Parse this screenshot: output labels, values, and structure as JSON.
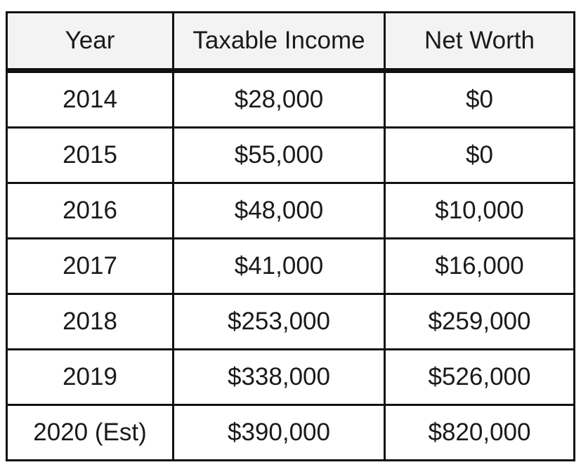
{
  "chart_data": {
    "type": "table",
    "columns": [
      "Year",
      "Taxable Income",
      "Net Worth"
    ],
    "rows": [
      [
        "2014",
        "$28,000",
        "$0"
      ],
      [
        "2015",
        "$55,000",
        "$0"
      ],
      [
        "2016",
        "$48,000",
        "$10,000"
      ],
      [
        "2017",
        "$41,000",
        "$16,000"
      ],
      [
        "2018",
        "$253,000",
        "$259,000"
      ],
      [
        "2019",
        "$338,000",
        "$526,000"
      ],
      [
        "2020 (Est)",
        "$390,000",
        "$820,000"
      ]
    ]
  }
}
